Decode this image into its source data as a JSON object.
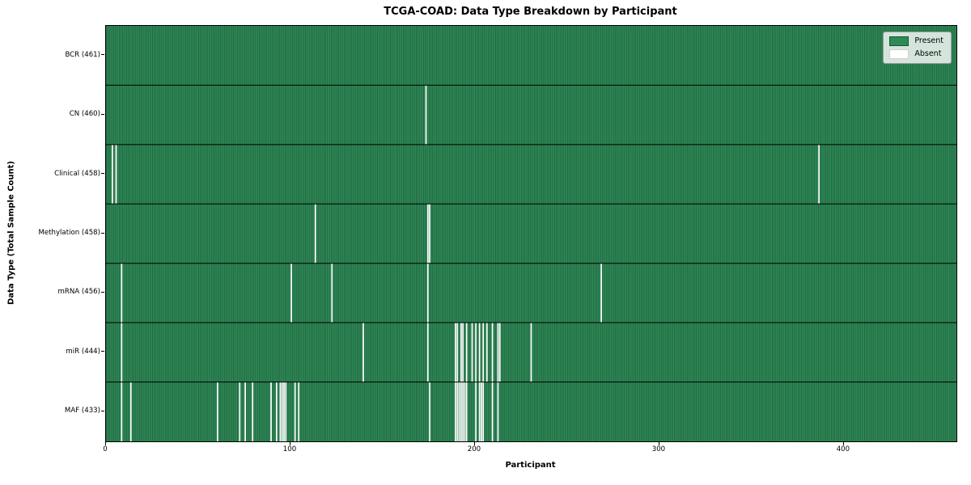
{
  "title": "TCGA-COAD: Data Type Breakdown by Participant",
  "xlabel": "Participant",
  "ylabel": "Data Type (Total Sample Count)",
  "legend": {
    "present_label": "Present",
    "absent_label": "Absent"
  },
  "colors": {
    "present": "#2E8B57",
    "absent": "#FFFFFF",
    "stripe_edge": "#1b5134",
    "row_divider": "#000000",
    "plot_border": "#000000"
  },
  "chart_data": {
    "type": "heatmap",
    "title": "TCGA-COAD: Data Type Breakdown by Participant",
    "xlabel": "Participant",
    "ylabel": "Data Type (Total Sample Count)",
    "legend_entries": [
      "Present",
      "Absent"
    ],
    "legend_position": "upper right",
    "n_participants": 461,
    "xlim": [
      0,
      461
    ],
    "x_ticks": [
      0,
      100,
      200,
      300,
      400
    ],
    "cell_values": "present=1, absent=0",
    "rows": [
      {
        "label": "BCR (461)",
        "data_type": "BCR",
        "present_count": 461,
        "absent_participants": []
      },
      {
        "label": "CN (460)",
        "data_type": "CN",
        "present_count": 460,
        "absent_participants": [
          173
        ]
      },
      {
        "label": "Clinical (458)",
        "data_type": "Clinical",
        "present_count": 458,
        "absent_participants": [
          3,
          5,
          386
        ]
      },
      {
        "label": "Methylation (458)",
        "data_type": "Methylation",
        "present_count": 458,
        "absent_participants": [
          113,
          174,
          175
        ]
      },
      {
        "label": "mRNA (456)",
        "data_type": "mRNA",
        "present_count": 456,
        "absent_participants": [
          8,
          100,
          122,
          174,
          268
        ]
      },
      {
        "label": "miR (444)",
        "data_type": "miR",
        "present_count": 444,
        "absent_participants": [
          8,
          139,
          174,
          189,
          190,
          192,
          193,
          195,
          198,
          200,
          202,
          204,
          206,
          209,
          212,
          213,
          230
        ]
      },
      {
        "label": "MAF (433)",
        "data_type": "MAF",
        "present_count": 433,
        "absent_participants": [
          8,
          13,
          60,
          72,
          75,
          79,
          89,
          92,
          94,
          95,
          96,
          97,
          102,
          104,
          175,
          189,
          190,
          191,
          192,
          193,
          194,
          195,
          200,
          202,
          203,
          204,
          209,
          212
        ]
      }
    ]
  }
}
